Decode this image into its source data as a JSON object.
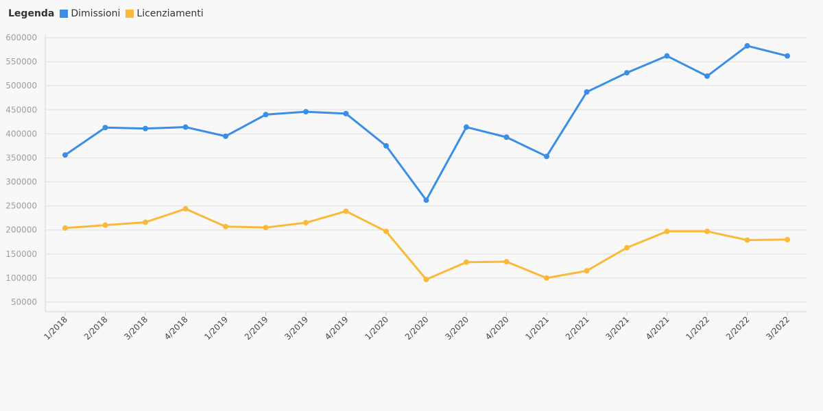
{
  "legend": {
    "title": "Legenda"
  },
  "chart_data": {
    "type": "line",
    "categories": [
      "1/2018",
      "2/2018",
      "3/2018",
      "4/2018",
      "1/2019",
      "2/2019",
      "3/2019",
      "4/2019",
      "1/2020",
      "2/2020",
      "3/2020",
      "4/2020",
      "1/2021",
      "2/2021",
      "3/2021",
      "4/2021",
      "1/2022",
      "2/2022",
      "3/2022"
    ],
    "series": [
      {
        "name": "Dimissioni",
        "color": "#3a8ee6",
        "values": [
          356000,
          413000,
          411000,
          414000,
          395000,
          440000,
          446000,
          442000,
          375000,
          262000,
          414000,
          393000,
          353000,
          487000,
          527000,
          562000,
          520000,
          583000,
          562000
        ]
      },
      {
        "name": "Licenziamenti",
        "color": "#fbb93a",
        "values": [
          204000,
          210000,
          216000,
          244000,
          207000,
          205000,
          215000,
          239000,
          197000,
          97000,
          133000,
          134000,
          100000,
          115000,
          163000,
          197000,
          197000,
          179000,
          180000
        ]
      }
    ],
    "yticks": [
      50000,
      100000,
      150000,
      200000,
      250000,
      300000,
      350000,
      400000,
      450000,
      500000,
      550000,
      600000
    ],
    "ylim": [
      30000,
      600000
    ],
    "grid": true,
    "legend_position": "top-left"
  }
}
